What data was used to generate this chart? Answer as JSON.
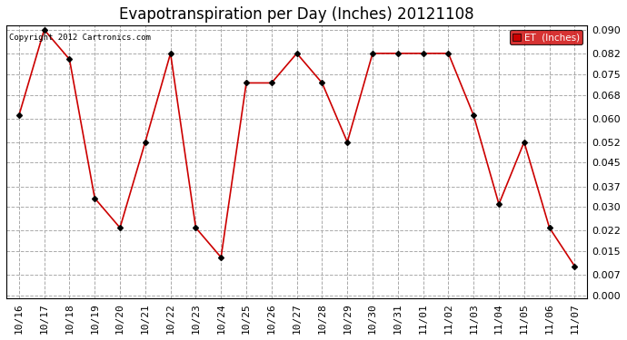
{
  "title": "Evapotranspiration per Day (Inches) 20121108",
  "copyright": "Copyright 2012 Cartronics.com",
  "legend_label": "ET  (Inches)",
  "x_dates": [
    "10/16",
    "10/17",
    "10/18",
    "10/19",
    "10/20",
    "10/21",
    "10/22",
    "10/23",
    "10/24",
    "10/25",
    "10/26",
    "10/27",
    "10/28",
    "10/29",
    "10/30",
    "10/31",
    "11/01",
    "11/02",
    "11/03",
    "11/04",
    "11/05",
    "11/06",
    "11/07"
  ],
  "y_values": [
    0.061,
    0.09,
    0.08,
    0.033,
    0.023,
    0.052,
    0.082,
    0.023,
    0.013,
    0.072,
    0.072,
    0.082,
    0.072,
    0.052,
    0.082,
    0.082,
    0.082,
    0.082,
    0.061,
    0.031,
    0.052,
    0.023,
    0.01
  ],
  "line_color": "#cc0000",
  "marker": "D",
  "marker_color": "#000000",
  "marker_size": 3,
  "background_color": "#ffffff",
  "plot_bg_color": "#ffffff",
  "grid_color": "#aaaaaa",
  "grid_style": "--",
  "ylim": [
    -0.001,
    0.0915
  ],
  "yticks": [
    0.0,
    0.007,
    0.015,
    0.022,
    0.03,
    0.037,
    0.045,
    0.052,
    0.06,
    0.068,
    0.075,
    0.082,
    0.09
  ],
  "title_fontsize": 12,
  "tick_fontsize": 8,
  "legend_bg": "#cc0000",
  "legend_text_color": "#ffffff"
}
